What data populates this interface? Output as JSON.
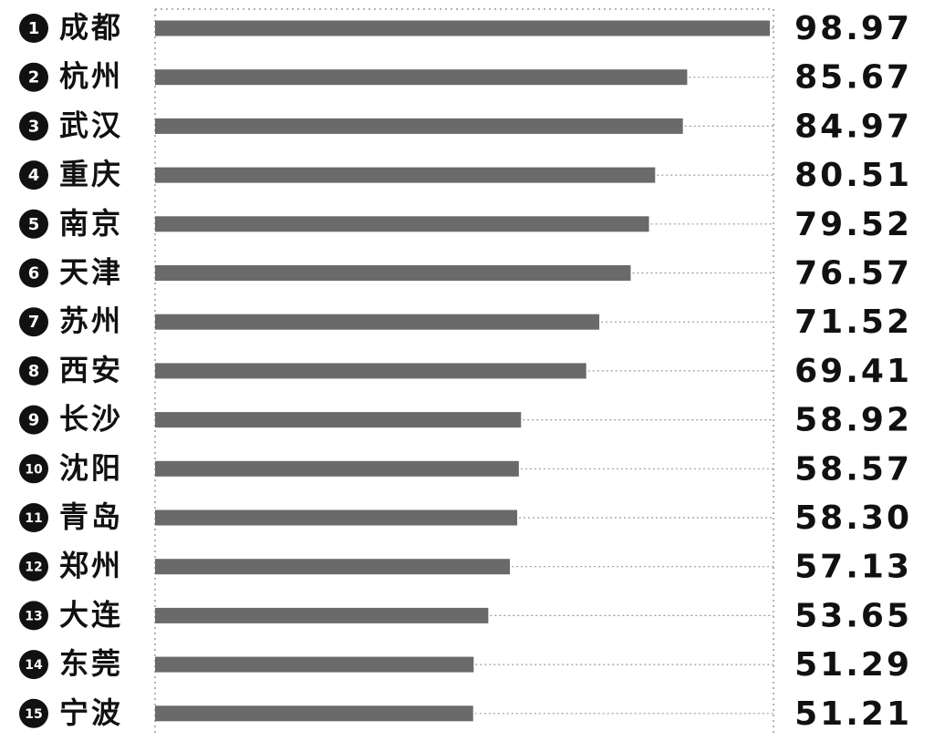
{
  "chart_data": {
    "type": "bar",
    "orientation": "horizontal",
    "grid": false,
    "colors": {
      "bar": "#6a6a6a",
      "text": "#111111",
      "rank_badge": "#111111",
      "rank_text": "#ffffff",
      "guide": "#9a9a9a"
    },
    "xlim": [
      0,
      100
    ],
    "categories": [
      "成都",
      "杭州",
      "武汉",
      "重庆",
      "南京",
      "天津",
      "苏州",
      "西安",
      "长沙",
      "沈阳",
      "青岛",
      "郑州",
      "大连",
      "东莞",
      "宁波"
    ],
    "ranks": [
      "1",
      "2",
      "3",
      "4",
      "5",
      "6",
      "7",
      "8",
      "9",
      "10",
      "11",
      "12",
      "13",
      "14",
      "15"
    ],
    "values": [
      98.97,
      85.67,
      84.97,
      80.51,
      79.52,
      76.57,
      71.52,
      69.41,
      58.92,
      58.57,
      58.3,
      57.13,
      53.65,
      51.29,
      51.21
    ],
    "value_labels": [
      "98.97",
      "85.67",
      "84.97",
      "80.51",
      "79.52",
      "76.57",
      "71.52",
      "69.41",
      "58.92",
      "58.57",
      "58.30",
      "57.13",
      "53.65",
      "51.29",
      "51.21"
    ]
  }
}
